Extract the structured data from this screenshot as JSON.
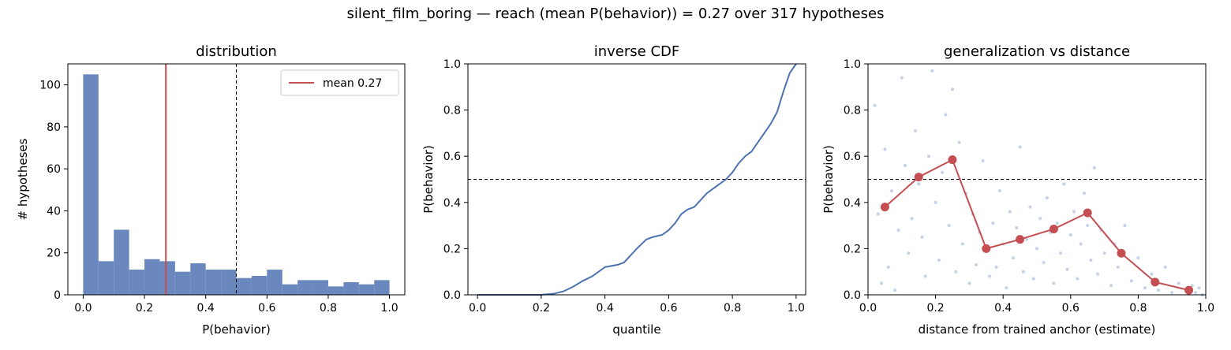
{
  "suptitle": "silent_film_boring  —  reach (mean P(behavior)) = 0.27  over 317 hypotheses",
  "colors": {
    "bar": "#6a88bd",
    "mean_line": "#c44e52",
    "cdf_line": "#4c72b0",
    "scatter_point": "#b6c5e0",
    "binned_line": "#c44e52",
    "threshold": "#000000"
  },
  "chart_data": [
    {
      "type": "bar",
      "title": "distribution",
      "xlabel": "P(behavior)",
      "ylabel": "# hypotheses",
      "xlim": [
        -0.05,
        1.05
      ],
      "ylim": [
        0,
        110
      ],
      "xticks": [
        "0.0",
        "0.2",
        "0.4",
        "0.6",
        "0.8",
        "1.0"
      ],
      "yticks": [
        "0",
        "20",
        "40",
        "60",
        "80",
        "100"
      ],
      "bin_edges": [
        0.0,
        0.05,
        0.1,
        0.15,
        0.2,
        0.25,
        0.3,
        0.35,
        0.4,
        0.45,
        0.5,
        0.55,
        0.6,
        0.65,
        0.7,
        0.75,
        0.8,
        0.85,
        0.9,
        0.95,
        1.0
      ],
      "values": [
        105,
        16,
        31,
        12,
        17,
        16,
        11,
        15,
        12,
        12,
        8,
        9,
        12,
        5,
        7,
        7,
        4,
        6,
        5,
        7
      ],
      "mean": 0.27,
      "threshold": 0.5,
      "legend": {
        "label": "mean 0.27",
        "placement": "upper right"
      },
      "grid": false
    },
    {
      "type": "line",
      "title": "inverse CDF",
      "xlabel": "quantile",
      "ylabel": "P(behavior)",
      "xlim": [
        -0.03,
        1.03
      ],
      "ylim": [
        0,
        1
      ],
      "xticks": [
        "0.0",
        "0.2",
        "0.4",
        "0.6",
        "0.8",
        "1.0"
      ],
      "yticks": [
        "0.0",
        "0.2",
        "0.4",
        "0.6",
        "0.8",
        "1.0"
      ],
      "threshold": 0.5,
      "x": [
        0.0,
        0.2,
        0.24,
        0.27,
        0.3,
        0.33,
        0.36,
        0.38,
        0.4,
        0.42,
        0.44,
        0.46,
        0.48,
        0.5,
        0.53,
        0.55,
        0.58,
        0.6,
        0.62,
        0.64,
        0.66,
        0.68,
        0.7,
        0.72,
        0.74,
        0.76,
        0.78,
        0.8,
        0.82,
        0.84,
        0.86,
        0.88,
        0.9,
        0.92,
        0.94,
        0.96,
        0.98,
        1.0
      ],
      "y": [
        0.0,
        0.0,
        0.005,
        0.015,
        0.035,
        0.06,
        0.08,
        0.1,
        0.12,
        0.125,
        0.13,
        0.14,
        0.17,
        0.2,
        0.24,
        0.25,
        0.26,
        0.28,
        0.31,
        0.35,
        0.37,
        0.38,
        0.41,
        0.44,
        0.46,
        0.48,
        0.5,
        0.53,
        0.57,
        0.6,
        0.62,
        0.66,
        0.7,
        0.74,
        0.79,
        0.88,
        0.96,
        1.0
      ],
      "grid": false
    },
    {
      "type": "scatter",
      "title": "generalization vs distance",
      "xlabel": "distance from trained anchor (estimate)",
      "ylabel": "P(behavior)",
      "xlim": [
        0,
        1
      ],
      "ylim": [
        0,
        1
      ],
      "xticks": [
        "0.0",
        "0.2",
        "0.4",
        "0.6",
        "0.8",
        "1.0"
      ],
      "yticks": [
        "0.0",
        "0.2",
        "0.4",
        "0.6",
        "0.8",
        "1.0"
      ],
      "threshold": 0.5,
      "binned": {
        "x": [
          0.05,
          0.15,
          0.25,
          0.35,
          0.45,
          0.55,
          0.65,
          0.75,
          0.85,
          0.95
        ],
        "y": [
          0.38,
          0.51,
          0.585,
          0.2,
          0.24,
          0.285,
          0.355,
          0.18,
          0.055,
          0.02
        ]
      },
      "points": [
        [
          0.02,
          0.82
        ],
        [
          0.03,
          0.35
        ],
        [
          0.04,
          0.05
        ],
        [
          0.05,
          0.63
        ],
        [
          0.06,
          0.12
        ],
        [
          0.07,
          0.45
        ],
        [
          0.08,
          0.02
        ],
        [
          0.09,
          0.28
        ],
        [
          0.1,
          0.94
        ],
        [
          0.11,
          0.56
        ],
        [
          0.12,
          0.18
        ],
        [
          0.13,
          0.33
        ],
        [
          0.14,
          0.71
        ],
        [
          0.15,
          0.48
        ],
        [
          0.16,
          0.25
        ],
        [
          0.17,
          0.08
        ],
        [
          0.18,
          0.6
        ],
        [
          0.19,
          0.97
        ],
        [
          0.2,
          0.4
        ],
        [
          0.21,
          0.15
        ],
        [
          0.22,
          0.53
        ],
        [
          0.23,
          0.78
        ],
        [
          0.24,
          0.3
        ],
        [
          0.25,
          0.89
        ],
        [
          0.26,
          0.1
        ],
        [
          0.27,
          0.66
        ],
        [
          0.28,
          0.22
        ],
        [
          0.29,
          0.44
        ],
        [
          0.3,
          0.05
        ],
        [
          0.31,
          0.35
        ],
        [
          0.32,
          0.13
        ],
        [
          0.33,
          0.27
        ],
        [
          0.34,
          0.58
        ],
        [
          0.35,
          0.19
        ],
        [
          0.36,
          0.08
        ],
        [
          0.37,
          0.31
        ],
        [
          0.38,
          0.12
        ],
        [
          0.39,
          0.45
        ],
        [
          0.4,
          0.22
        ],
        [
          0.41,
          0.03
        ],
        [
          0.42,
          0.36
        ],
        [
          0.43,
          0.16
        ],
        [
          0.44,
          0.29
        ],
        [
          0.45,
          0.64
        ],
        [
          0.46,
          0.1
        ],
        [
          0.47,
          0.24
        ],
        [
          0.48,
          0.38
        ],
        [
          0.49,
          0.07
        ],
        [
          0.5,
          0.2
        ],
        [
          0.51,
          0.33
        ],
        [
          0.52,
          0.14
        ],
        [
          0.53,
          0.42
        ],
        [
          0.54,
          0.27
        ],
        [
          0.55,
          0.05
        ],
        [
          0.56,
          0.31
        ],
        [
          0.57,
          0.18
        ],
        [
          0.58,
          0.48
        ],
        [
          0.59,
          0.11
        ],
        [
          0.6,
          0.26
        ],
        [
          0.61,
          0.36
        ],
        [
          0.62,
          0.07
        ],
        [
          0.63,
          0.22
        ],
        [
          0.64,
          0.44
        ],
        [
          0.65,
          0.3
        ],
        [
          0.66,
          0.15
        ],
        [
          0.67,
          0.55
        ],
        [
          0.68,
          0.09
        ],
        [
          0.69,
          0.28
        ],
        [
          0.7,
          0.18
        ],
        [
          0.72,
          0.04
        ],
        [
          0.73,
          0.22
        ],
        [
          0.74,
          0.12
        ],
        [
          0.76,
          0.3
        ],
        [
          0.78,
          0.06
        ],
        [
          0.8,
          0.16
        ],
        [
          0.82,
          0.03
        ],
        [
          0.84,
          0.09
        ],
        [
          0.86,
          0.02
        ],
        [
          0.88,
          0.12
        ],
        [
          0.9,
          0.01
        ],
        [
          0.92,
          0.05
        ],
        [
          0.94,
          0.02
        ],
        [
          0.96,
          0.04
        ],
        [
          0.97,
          0.01
        ],
        [
          0.98,
          0.03
        ],
        [
          0.99,
          0.0
        ]
      ],
      "grid": false
    }
  ]
}
